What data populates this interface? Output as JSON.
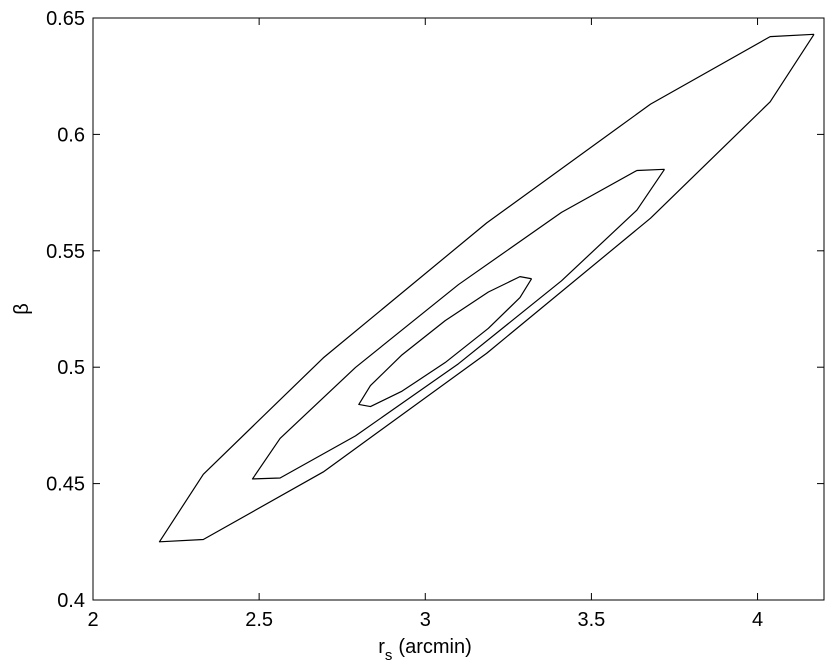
{
  "chart_data": {
    "type": "contour",
    "xlabel": [
      "r",
      "s",
      "(arcmin)"
    ],
    "ylabel": "β",
    "xlim": [
      2,
      4.2
    ],
    "ylim": [
      0.4,
      0.65
    ],
    "xticks": [
      2,
      2.5,
      3,
      3.5,
      4
    ],
    "yticks": [
      0.4,
      0.45,
      0.5,
      0.55,
      0.6,
      0.65
    ],
    "series": [
      {
        "color": "#000000",
        "x": [
          4.17,
          4.038,
          3.678,
          3.185,
          2.693,
          2.332,
          2.2,
          2.332,
          2.693,
          3.185,
          3.678,
          4.038,
          4.17
        ],
        "values": [
          0.643,
          0.642,
          0.613,
          0.562,
          0.504,
          0.454,
          0.425,
          0.426,
          0.455,
          0.506,
          0.564,
          0.614,
          0.643
        ]
      },
      {
        "color": "#000000",
        "x": [
          3.72,
          3.637,
          3.41,
          3.1,
          2.79,
          2.563,
          2.48,
          2.563,
          2.79,
          3.1,
          3.41,
          3.637,
          3.72
        ],
        "values": [
          0.585,
          0.5845,
          0.5665,
          0.5355,
          0.4999,
          0.4694,
          0.452,
          0.4524,
          0.4705,
          0.5015,
          0.5371,
          0.5675,
          0.585
        ]
      },
      {
        "color": "#000000",
        "x": [
          3.32,
          3.285,
          3.19,
          3.06,
          2.93,
          2.835,
          2.8,
          2.835,
          2.93,
          3.06,
          3.19,
          3.285,
          3.32
        ],
        "values": [
          0.538,
          0.5389,
          0.5323,
          0.52,
          0.5053,
          0.4921,
          0.484,
          0.4831,
          0.4897,
          0.502,
          0.5167,
          0.5299,
          0.538
        ]
      }
    ]
  }
}
